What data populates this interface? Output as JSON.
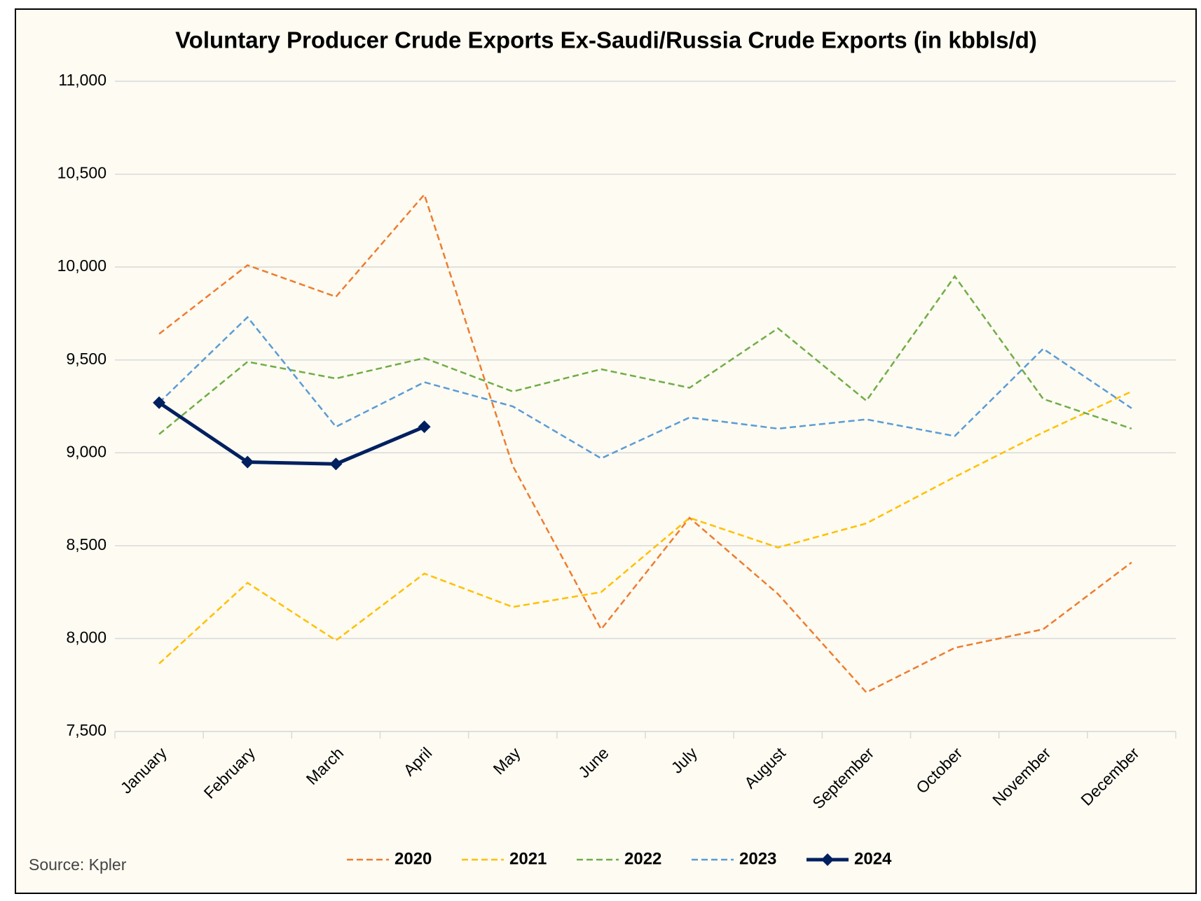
{
  "chart_data": {
    "type": "line",
    "title": "Voluntary Producer Crude Exports Ex-Saudi/Russia Crude Exports (in kbbls/d)",
    "source": "Source: Kpler",
    "categories": [
      "January",
      "February",
      "March",
      "April",
      "May",
      "June",
      "July",
      "August",
      "September",
      "October",
      "November",
      "December"
    ],
    "series": [
      {
        "name": "2020",
        "color": "#ed7d31",
        "dashed": true,
        "values": [
          9640,
          10010,
          9840,
          10390,
          8930,
          8050,
          8650,
          8240,
          7710,
          7950,
          8050,
          8410
        ]
      },
      {
        "name": "2021",
        "color": "#ffc000",
        "dashed": true,
        "values": [
          7865,
          8300,
          7990,
          8350,
          8170,
          8250,
          8650,
          8490,
          8620,
          8870,
          9110,
          9330
        ]
      },
      {
        "name": "2022",
        "color": "#70ad47",
        "dashed": true,
        "values": [
          9100,
          9490,
          9400,
          9510,
          9330,
          9450,
          9350,
          9670,
          9280,
          9950,
          9290,
          9130
        ]
      },
      {
        "name": "2023",
        "color": "#5b9bd5",
        "dashed": true,
        "values": [
          9270,
          9730,
          9140,
          9380,
          9250,
          8970,
          9190,
          9130,
          9180,
          9090,
          9560,
          9240
        ]
      },
      {
        "name": "2024",
        "color": "#002060",
        "dashed": false,
        "markers": "diamond",
        "values": [
          9270,
          8950,
          8940,
          9140,
          null,
          null,
          null,
          null,
          null,
          null,
          null,
          null
        ]
      }
    ],
    "ylim": [
      7500,
      11000
    ],
    "yticks": [
      {
        "value": 7500,
        "label": "7,500"
      },
      {
        "value": 8000,
        "label": "8,000"
      },
      {
        "value": 8500,
        "label": "8,500"
      },
      {
        "value": 9000,
        "label": "9,000"
      },
      {
        "value": 9500,
        "label": "9,500"
      },
      {
        "value": 10000,
        "label": "10,000"
      },
      {
        "value": 10500,
        "label": "10,500"
      },
      {
        "value": 11000,
        "label": "11,000"
      }
    ],
    "grid": true,
    "legend": "bottom"
  }
}
